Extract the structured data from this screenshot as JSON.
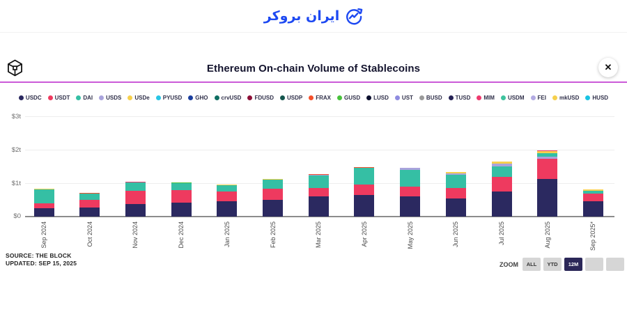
{
  "site_header": {
    "brand_text": "ایران بروکر",
    "brand_color": "#1d49f2"
  },
  "chart_header": {
    "title": "Ethereum On-chain Volume of Stablecoins",
    "close_label": "✕",
    "accent_line_color": "#cb5ad8"
  },
  "coin_colors": {
    "USDC": "#2b2960",
    "USDT": "#ee3a5f",
    "DAI": "#35bfa4",
    "USDS": "#a9a3dc",
    "USDe": "#f6d04d",
    "PYUSD": "#28c5e5",
    "GHO": "#1b3e9e",
    "crvUSD": "#0f6e62",
    "FDUSD": "#8e1038",
    "USDP": "#14554d",
    "FRAX": "#f4502c",
    "GUSD": "#49c23c",
    "LUSD": "#0c0f2e",
    "UST": "#8f8ce0",
    "BUSD": "#9a9a9a",
    "TUSD": "#262255",
    "MIM": "#ee3a6e",
    "USDM": "#3fc39e",
    "FEI": "#b3abe3",
    "mkUSD": "#f6d04d",
    "HUSD": "#19c3e3"
  },
  "chart_data": {
    "type": "bar",
    "stacked": true,
    "title": "Ethereum On-chain Volume of Stablecoins",
    "unit": "trillions USD",
    "ylim": [
      0,
      3
    ],
    "yticks_top_to_bottom": [
      "$3t",
      "$2t",
      "$1t",
      "$0"
    ],
    "grid": true,
    "legend_position": "top",
    "legend": [
      "USDC",
      "USDT",
      "DAI",
      "USDS",
      "USDe",
      "PYUSD",
      "GHO",
      "crvUSD",
      "FDUSD",
      "USDP",
      "FRAX",
      "GUSD",
      "LUSD",
      "UST",
      "BUSD",
      "TUSD",
      "MIM",
      "USDM",
      "FEI",
      "mkUSD",
      "HUSD"
    ],
    "categories": [
      "Sep 2024",
      "Oct 2024",
      "Nov 2024",
      "Dec 2024",
      "Jan 2025",
      "Feb 2025",
      "Mar 2025",
      "Apr 2025",
      "May 2025",
      "Jun 2025",
      "Jul 2025",
      "Aug 2025",
      "Sep 2025*"
    ],
    "bars": [
      {
        "month": "Sep 2024",
        "total": 0.83,
        "segments": [
          {
            "coin": "USDC",
            "value": 0.24
          },
          {
            "coin": "USDT",
            "value": 0.15
          },
          {
            "coin": "DAI",
            "value": 0.42
          },
          {
            "coin": "USDe",
            "value": 0.02
          }
        ]
      },
      {
        "month": "Oct 2024",
        "total": 0.71,
        "segments": [
          {
            "coin": "USDC",
            "value": 0.28
          },
          {
            "coin": "USDT",
            "value": 0.21
          },
          {
            "coin": "DAI",
            "value": 0.2
          },
          {
            "coin": "FRAX",
            "value": 0.02
          }
        ]
      },
      {
        "month": "Nov 2024",
        "total": 1.05,
        "segments": [
          {
            "coin": "USDC",
            "value": 0.38
          },
          {
            "coin": "USDT",
            "value": 0.39
          },
          {
            "coin": "DAI",
            "value": 0.26
          },
          {
            "coin": "MIM",
            "value": 0.02
          }
        ]
      },
      {
        "month": "Dec 2024",
        "total": 1.02,
        "segments": [
          {
            "coin": "USDC",
            "value": 0.42
          },
          {
            "coin": "USDT",
            "value": 0.37
          },
          {
            "coin": "DAI",
            "value": 0.21
          },
          {
            "coin": "GUSD",
            "value": 0.02
          }
        ]
      },
      {
        "month": "Jan 2025",
        "total": 0.95,
        "segments": [
          {
            "coin": "USDC",
            "value": 0.46
          },
          {
            "coin": "USDT",
            "value": 0.3
          },
          {
            "coin": "DAI",
            "value": 0.17
          },
          {
            "coin": "USDe",
            "value": 0.02
          }
        ]
      },
      {
        "month": "Feb 2025",
        "total": 1.12,
        "segments": [
          {
            "coin": "USDC",
            "value": 0.51
          },
          {
            "coin": "USDT",
            "value": 0.32
          },
          {
            "coin": "DAI",
            "value": 0.27
          },
          {
            "coin": "USDe",
            "value": 0.02
          }
        ]
      },
      {
        "month": "Mar 2025",
        "total": 1.27,
        "segments": [
          {
            "coin": "USDC",
            "value": 0.6
          },
          {
            "coin": "USDT",
            "value": 0.26
          },
          {
            "coin": "DAI",
            "value": 0.37
          },
          {
            "coin": "USDS",
            "value": 0.02
          },
          {
            "coin": "FRAX",
            "value": 0.02
          }
        ]
      },
      {
        "month": "Apr 2025",
        "total": 1.48,
        "segments": [
          {
            "coin": "USDC",
            "value": 0.65
          },
          {
            "coin": "USDT",
            "value": 0.31
          },
          {
            "coin": "DAI",
            "value": 0.49
          },
          {
            "coin": "FRAX",
            "value": 0.02
          },
          {
            "coin": "FDUSD",
            "value": 0.01
          }
        ]
      },
      {
        "month": "May 2025",
        "total": 1.45,
        "segments": [
          {
            "coin": "USDC",
            "value": 0.61
          },
          {
            "coin": "USDT",
            "value": 0.28
          },
          {
            "coin": "DAI",
            "value": 0.51
          },
          {
            "coin": "USDS",
            "value": 0.05
          }
        ]
      },
      {
        "month": "Jun 2025",
        "total": 1.34,
        "segments": [
          {
            "coin": "USDC",
            "value": 0.54
          },
          {
            "coin": "USDT",
            "value": 0.31
          },
          {
            "coin": "DAI",
            "value": 0.39
          },
          {
            "coin": "USDS",
            "value": 0.05
          },
          {
            "coin": "USDe",
            "value": 0.05
          }
        ]
      },
      {
        "month": "Jul 2025",
        "total": 1.64,
        "segments": [
          {
            "coin": "USDC",
            "value": 0.76
          },
          {
            "coin": "USDT",
            "value": 0.42
          },
          {
            "coin": "DAI",
            "value": 0.33
          },
          {
            "coin": "USDS",
            "value": 0.08
          },
          {
            "coin": "USDe",
            "value": 0.05
          }
        ]
      },
      {
        "month": "Aug 2025",
        "total": 1.98,
        "segments": [
          {
            "coin": "USDC",
            "value": 1.13
          },
          {
            "coin": "USDT",
            "value": 0.59
          },
          {
            "coin": "USDS",
            "value": 0.07
          },
          {
            "coin": "DAI",
            "value": 0.1
          },
          {
            "coin": "USDe",
            "value": 0.07
          },
          {
            "coin": "MIM",
            "value": 0.02
          }
        ]
      },
      {
        "month": "Sep 2025*",
        "total": 0.81,
        "segments": [
          {
            "coin": "USDC",
            "value": 0.45
          },
          {
            "coin": "USDT",
            "value": 0.24
          },
          {
            "coin": "DAI",
            "value": 0.08
          },
          {
            "coin": "USDe",
            "value": 0.04
          }
        ]
      }
    ]
  },
  "footer": {
    "source": "SOURCE: THE BLOCK",
    "updated": "UPDATED: SEP 15, 2025"
  },
  "zoom_controls": {
    "label": "ZOOM",
    "buttons": [
      {
        "label": "ALL",
        "active": false
      },
      {
        "label": "YTD",
        "active": false
      },
      {
        "label": "12M",
        "active": true
      },
      {
        "label": "",
        "active": false
      },
      {
        "label": "",
        "active": false
      }
    ]
  }
}
